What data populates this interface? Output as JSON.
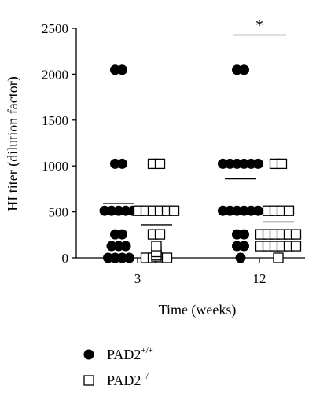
{
  "chart_data": {
    "type": "scatter",
    "xlabel": "Time (weeks)",
    "ylabel": "HI titer (dilution factor)",
    "ylim": [
      0,
      2500
    ],
    "yticks": [
      0,
      500,
      1000,
      1500,
      2000,
      2500
    ],
    "categories": [
      "3",
      "12"
    ],
    "series": [
      {
        "name_base": "PAD2",
        "name_sup": "+/+",
        "marker": "filled-circle",
        "color": "#000000",
        "groups": [
          {
            "category": "3",
            "mean": 590,
            "values": [
              2048,
              2048,
              1024,
              1024,
              512,
              512,
              512,
              512,
              512,
              256,
              256,
              128,
              128,
              128,
              0,
              0,
              0,
              0
            ]
          },
          {
            "category": "12",
            "mean": 860,
            "values": [
              2048,
              2048,
              1024,
              1024,
              1024,
              1024,
              1024,
              1024,
              512,
              512,
              512,
              512,
              512,
              512,
              256,
              256,
              128,
              128,
              0
            ]
          }
        ]
      },
      {
        "name_base": "PAD2",
        "name_sup": "−/−",
        "marker": "open-square",
        "color": "#000000",
        "groups": [
          {
            "category": "3",
            "mean": 360,
            "values": [
              1024,
              1024,
              512,
              512,
              512,
              512,
              512,
              512,
              256,
              256,
              128,
              64,
              32,
              16,
              0,
              0,
              0,
              0
            ]
          },
          {
            "category": "12",
            "mean": 390,
            "values": [
              1024,
              1024,
              512,
              512,
              512,
              512,
              256,
              256,
              256,
              256,
              256,
              256,
              128,
              128,
              128,
              128,
              128,
              128,
              0
            ]
          }
        ]
      }
    ],
    "annotations": [
      {
        "text": "*",
        "category": "12",
        "y": 2470
      }
    ],
    "legend_placement": "bottom-left",
    "grid": false
  }
}
